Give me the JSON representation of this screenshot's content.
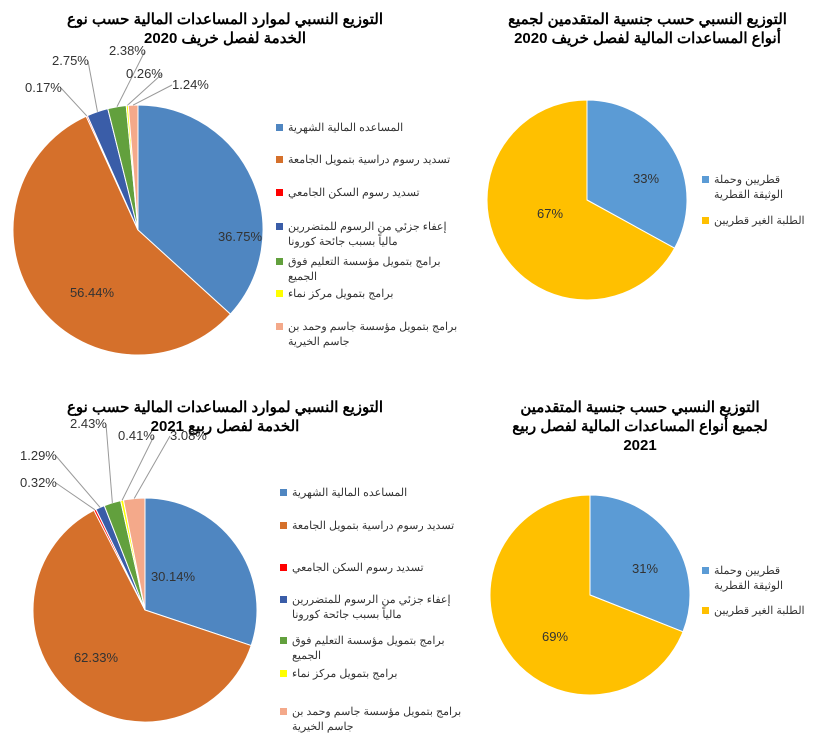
{
  "chart_data": [
    {
      "type": "pie",
      "title": "التوزيع النسبي لموارد المساعدات المالية حسب نوع الخدمة لفصل خريف 2020",
      "categories": [
        "المساعده المالية الشهرية",
        "تسديد رسوم دراسية بتمويل الجامعة",
        "تسديد رسوم السكن الجامعي",
        "إعفاء جزئي من الرسوم للمتضررين مالياً بسبب جائحة كورونا",
        "برامج بتمويل مؤسسة التعليم فوق الجميع",
        "برامج بتمويل مركز نماء",
        "برامج بتمويل مؤسسة جاسم وحمد بن جاسم الخيرية"
      ],
      "values": [
        36.75,
        56.44,
        0.17,
        2.75,
        2.38,
        0.26,
        1.24
      ],
      "labels": [
        "36.75%",
        "56.44%",
        "0.17%",
        "2.75%",
        "2.38%",
        "0.26%",
        "1.24%"
      ],
      "colors": [
        "#4F86C1",
        "#D5702B",
        "#FF0000",
        "#3A5DA8",
        "#62A03D",
        "#FFFF00",
        "#F4A98A"
      ],
      "legend": "right"
    },
    {
      "type": "pie",
      "title": "التوزيع النسبي حسب جنسية المتقدمين لجميع أنواع المساعدات المالية لفصل خريف 2020",
      "categories": [
        "قطريين وحملة الوثيقة القطرية",
        "الطلبة الغير قطريين"
      ],
      "values": [
        33,
        67
      ],
      "labels": [
        "33%",
        "67%"
      ],
      "colors": [
        "#5B9BD5",
        "#FFC000"
      ],
      "legend": "right"
    },
    {
      "type": "pie",
      "title": "التوزيع النسبي لموارد المساعدات المالية حسب نوع الخدمة لفصل ربيع 2021",
      "categories": [
        "المساعده المالية الشهرية",
        "تسديد رسوم دراسية بتمويل الجامعة",
        "تسديد رسوم السكن الجامعي",
        "إعفاء جزئي من الرسوم للمتضررين مالياً بسبب جائحة كورونا",
        "برامج بتمويل مؤسسة التعليم فوق الجميع",
        "برامج بتمويل مركز نماء",
        "برامج بتمويل مؤسسة جاسم وحمد بن جاسم الخيرية"
      ],
      "values": [
        30.14,
        62.33,
        0.32,
        1.29,
        2.43,
        0.41,
        3.08
      ],
      "labels": [
        "30.14%",
        "62.33%",
        "0.32%",
        "1.29%",
        "2.43%",
        "0.41%",
        "3.08%"
      ],
      "colors": [
        "#4F86C1",
        "#D5702B",
        "#FF0000",
        "#3A5DA8",
        "#62A03D",
        "#FFFF00",
        "#F4A98A"
      ],
      "legend": "right"
    },
    {
      "type": "pie",
      "title": "التوزيع النسبي حسب جنسية المتقدمين لجميع أنواع المساعدات المالية لفصل ربيع 2021",
      "categories": [
        "قطريين وحملة الوثيقة القطرية",
        "الطلبة الغير قطريين"
      ],
      "values": [
        31,
        69
      ],
      "labels": [
        "31%",
        "69%"
      ],
      "colors": [
        "#5B9BD5",
        "#FFC000"
      ],
      "legend": "right"
    }
  ]
}
